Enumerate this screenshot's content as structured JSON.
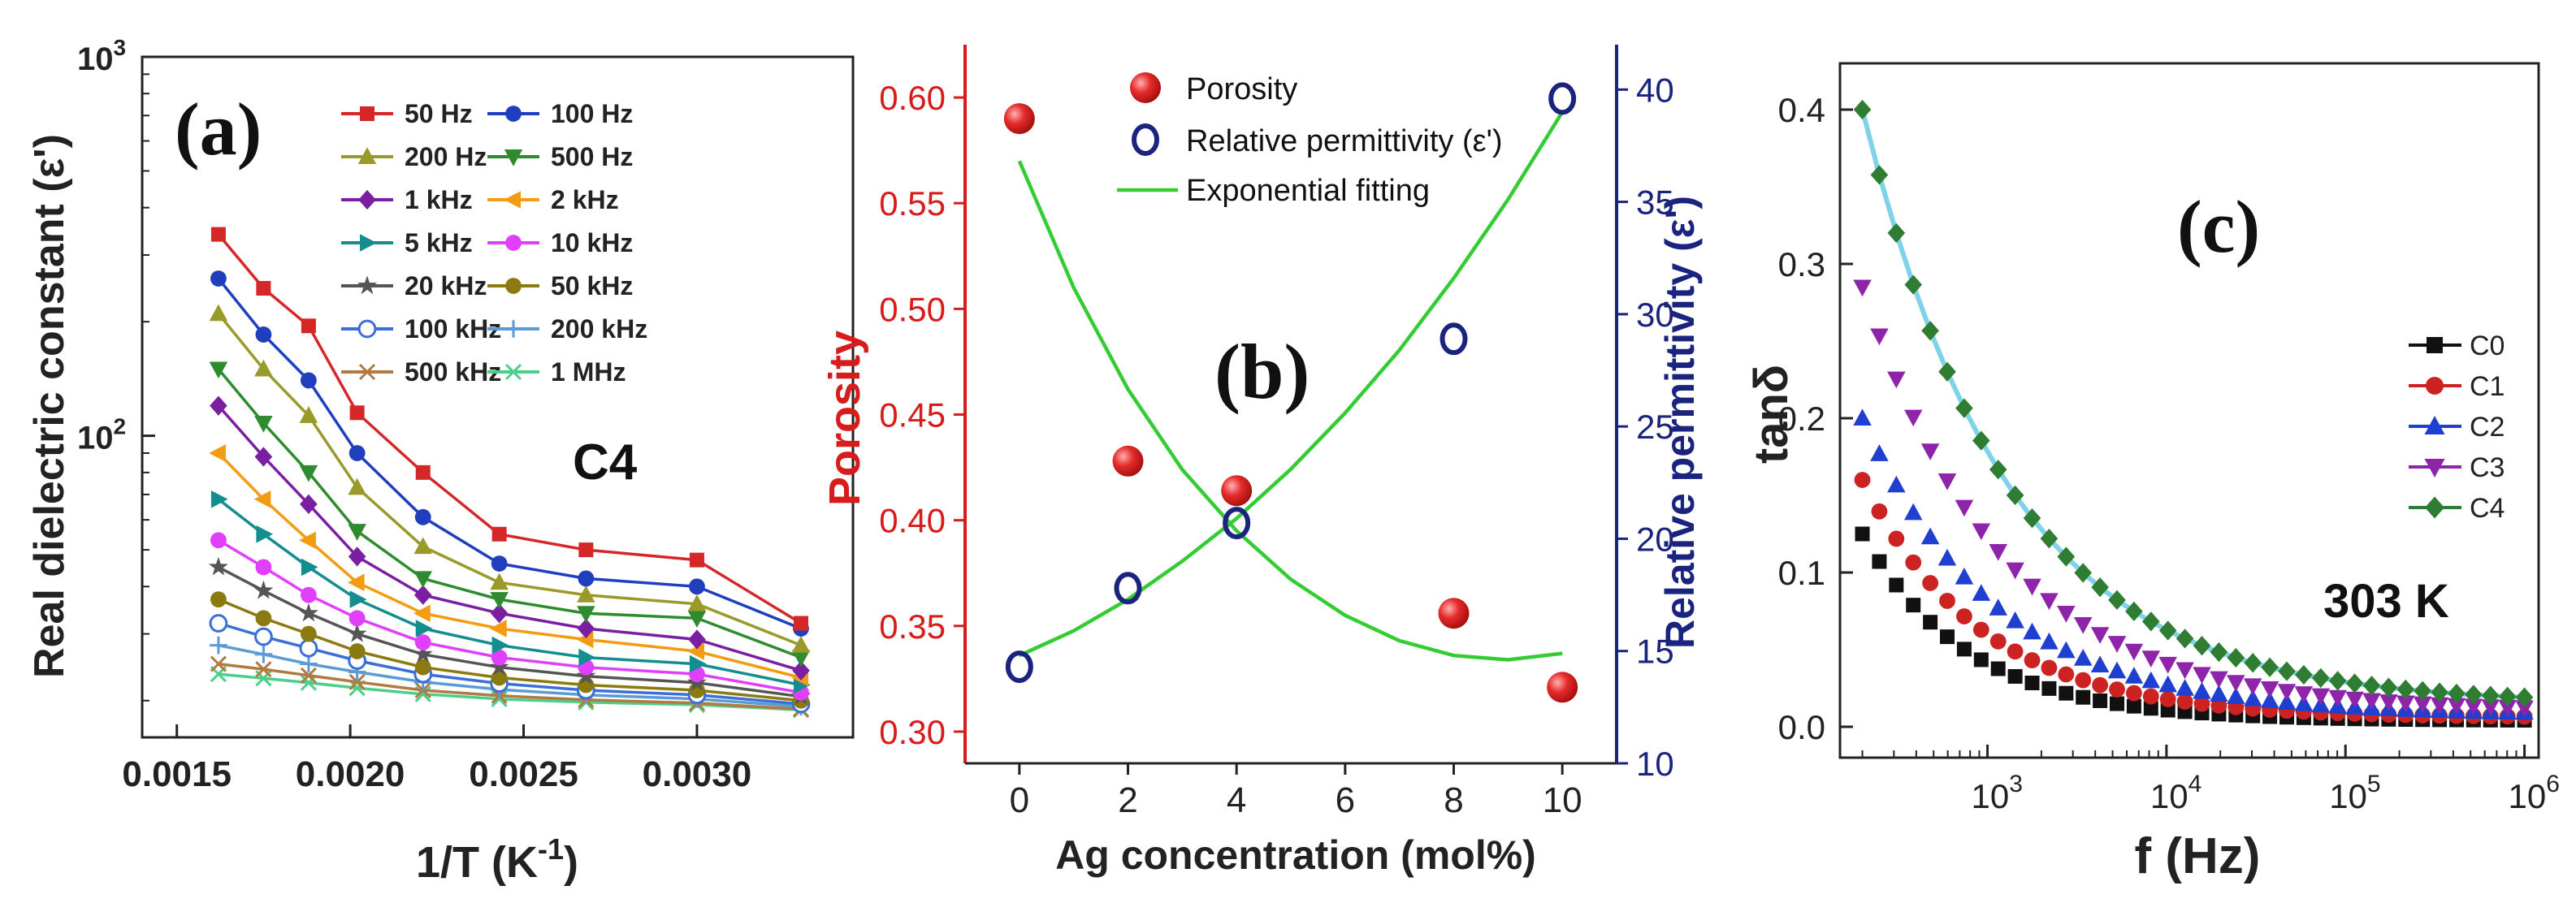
{
  "chart_data": [
    {
      "id": "a",
      "type": "line",
      "panel_label": "(a)",
      "annotation": "C4",
      "xlabel": "1/T (K",
      "xlabel_sup": "-1",
      "xlabel_end": ")",
      "ylabel": "Real dielectric constant (ε')",
      "yscale": "log",
      "xlim": [
        0.0014,
        0.00345
      ],
      "ylim": [
        16,
        1000
      ],
      "xticks": [
        0.0015,
        0.002,
        0.0025,
        0.003
      ],
      "xtick_labels": [
        "0.0015",
        "0.0020",
        "0.0025",
        "0.0030"
      ],
      "yticks": [
        100,
        1000
      ],
      "ytick_labels": [
        {
          "base": "10",
          "exp": "2"
        },
        {
          "base": "10",
          "exp": "3"
        }
      ],
      "x": [
        0.00162,
        0.00175,
        0.00188,
        0.00202,
        0.00221,
        0.00243,
        0.00268,
        0.003,
        0.0033
      ],
      "series": [
        {
          "name": "50 Hz",
          "color": "#d62728",
          "marker": "square",
          "values": [
            340,
            245,
            195,
            115,
            80,
            55,
            50,
            47,
            32
          ]
        },
        {
          "name": "100 Hz",
          "color": "#1f3fbf",
          "marker": "circle",
          "values": [
            260,
            185,
            140,
            90,
            61,
            46,
            42,
            40,
            31
          ]
        },
        {
          "name": "200 Hz",
          "color": "#9a9a2a",
          "marker": "triangle",
          "values": [
            210,
            150,
            113,
            73,
            51,
            41,
            38,
            36,
            28
          ]
        },
        {
          "name": "500 Hz",
          "color": "#2e8b2e",
          "marker": "tri-down",
          "values": [
            150,
            108,
            80,
            56,
            42,
            37,
            34,
            33,
            26
          ]
        },
        {
          "name": "1 kHz",
          "color": "#7b1fa2",
          "marker": "diamond",
          "values": [
            120,
            88,
            66,
            48,
            38,
            34,
            31,
            29,
            24
          ]
        },
        {
          "name": "2 kHz",
          "color": "#f39c12",
          "marker": "tri-left",
          "values": [
            90,
            68,
            53,
            41,
            34,
            31,
            29,
            27,
            23
          ]
        },
        {
          "name": "5 kHz",
          "color": "#138d90",
          "marker": "tri-right",
          "values": [
            68,
            55,
            45,
            37,
            31,
            28,
            26,
            25,
            22
          ]
        },
        {
          "name": "10 kHz",
          "color": "#e040fb",
          "marker": "circle",
          "values": [
            53,
            45,
            38,
            33,
            28.5,
            26,
            24.5,
            23.5,
            21
          ]
        },
        {
          "name": "20 kHz",
          "color": "#555555",
          "marker": "star",
          "values": [
            45,
            39,
            34,
            30,
            26.5,
            24.5,
            23.2,
            22.3,
            20.5
          ]
        },
        {
          "name": "50 kHz",
          "color": "#8a7a10",
          "marker": "circle",
          "values": [
            37,
            33,
            30,
            27,
            24.5,
            23,
            22,
            21.3,
            20
          ]
        },
        {
          "name": "100 kHz",
          "color": "#3a6fd8",
          "marker": "half-circle",
          "values": [
            32,
            29.5,
            27.5,
            25.5,
            23.5,
            22.2,
            21.3,
            20.7,
            19.6
          ]
        },
        {
          "name": "200 kHz",
          "color": "#5a9bd5",
          "marker": "plus",
          "values": [
            28,
            26.5,
            25,
            23.8,
            22.4,
            21.4,
            20.7,
            20.2,
            19.3
          ]
        },
        {
          "name": "500 kHz",
          "color": "#b07a40",
          "marker": "cross",
          "values": [
            25,
            24.2,
            23.3,
            22.4,
            21.3,
            20.6,
            20.1,
            19.7,
            19
          ]
        },
        {
          "name": "1 MHz",
          "color": "#4ccf8a",
          "marker": "cross",
          "values": [
            23.5,
            22.9,
            22.3,
            21.6,
            20.8,
            20.2,
            19.8,
            19.5,
            18.9
          ]
        }
      ]
    },
    {
      "id": "b",
      "type": "scatter",
      "panel_label": "(b)",
      "xlabel": "Ag concentration (mol%)",
      "ylabel_left": "Porosity",
      "ylabel_right": "Relative permittivity (ε')",
      "xlim": [
        -1,
        11
      ],
      "ylim_left": [
        0.285,
        0.625
      ],
      "ylim_right": [
        10,
        42
      ],
      "xticks": [
        0,
        2,
        4,
        6,
        8,
        10
      ],
      "yticks_left": [
        0.3,
        0.35,
        0.4,
        0.45,
        0.5,
        0.55,
        0.6
      ],
      "ytick_labels_left": [
        "0.30",
        "0.35",
        "0.40",
        "0.45",
        "0.50",
        "0.55",
        "0.60"
      ],
      "yticks_right": [
        10,
        15,
        20,
        25,
        30,
        35,
        40
      ],
      "left_color": "#d81b1b",
      "right_color": "#1a237e",
      "fit_color": "#33cc33",
      "legend": [
        "Porosity",
        "Relative permittivity (ε')",
        "Exponential fitting"
      ],
      "porosity": {
        "x": [
          0,
          2,
          4,
          8,
          10
        ],
        "y": [
          0.59,
          0.428,
          0.414,
          0.356,
          0.321
        ]
      },
      "permittivity": {
        "x": [
          0,
          2,
          4,
          8,
          10
        ],
        "y": [
          14.3,
          17.8,
          20.7,
          28.9,
          39.6
        ]
      },
      "porosity_fit": {
        "x": [
          0,
          1,
          2,
          3,
          4,
          5,
          6,
          7,
          8,
          9,
          10
        ],
        "y": [
          0.57,
          0.51,
          0.462,
          0.424,
          0.395,
          0.372,
          0.355,
          0.343,
          0.336,
          0.334,
          0.337
        ]
      },
      "permittivity_fit": {
        "x": [
          0,
          1,
          2,
          3,
          4,
          5,
          6,
          7,
          8,
          9,
          10
        ],
        "y": [
          14.8,
          15.9,
          17.3,
          19.0,
          20.9,
          23.1,
          25.6,
          28.4,
          31.6,
          35.1,
          39.0
        ]
      }
    },
    {
      "id": "c",
      "type": "scatter",
      "panel_label": "(c)",
      "annotation": "303 K",
      "xlabel": "f (Hz)",
      "ylabel": "tanδ",
      "xscale": "log",
      "xlim": [
        150,
        1200000
      ],
      "ylim": [
        -0.02,
        0.43
      ],
      "xticks": [
        1000,
        10000,
        100000,
        1000000
      ],
      "xtick_labels": [
        {
          "base": "10",
          "exp": "3"
        },
        {
          "base": "10",
          "exp": "4"
        },
        {
          "base": "10",
          "exp": "5"
        },
        {
          "base": "10",
          "exp": "6"
        }
      ],
      "yticks": [
        0,
        0.1,
        0.2,
        0.3,
        0.4
      ],
      "ytick_labels": [
        "0.0",
        "0.1",
        "0.2",
        "0.3",
        "0.4"
      ],
      "series": [
        {
          "name": "C0",
          "color": "#111111",
          "marker": "square",
          "start": 0.125,
          "tail": 0.004,
          "decades": 0.8
        },
        {
          "name": "C1",
          "color": "#cc2222",
          "marker": "circle",
          "start": 0.16,
          "tail": 0.006,
          "decades": 0.9
        },
        {
          "name": "C2",
          "color": "#1f3fd0",
          "marker": "triangle",
          "start": 0.2,
          "tail": 0.008,
          "decades": 1.0
        },
        {
          "name": "C3",
          "color": "#8e24aa",
          "marker": "tri-down",
          "start": 0.285,
          "tail": 0.01,
          "decades": 1.05
        },
        {
          "name": "C4",
          "color": "#2e7d32",
          "marker": "diamond",
          "start": 0.4,
          "tail": 0.015,
          "decades": 1.1
        }
      ],
      "C4_line_color": "#7fd3e8"
    }
  ]
}
